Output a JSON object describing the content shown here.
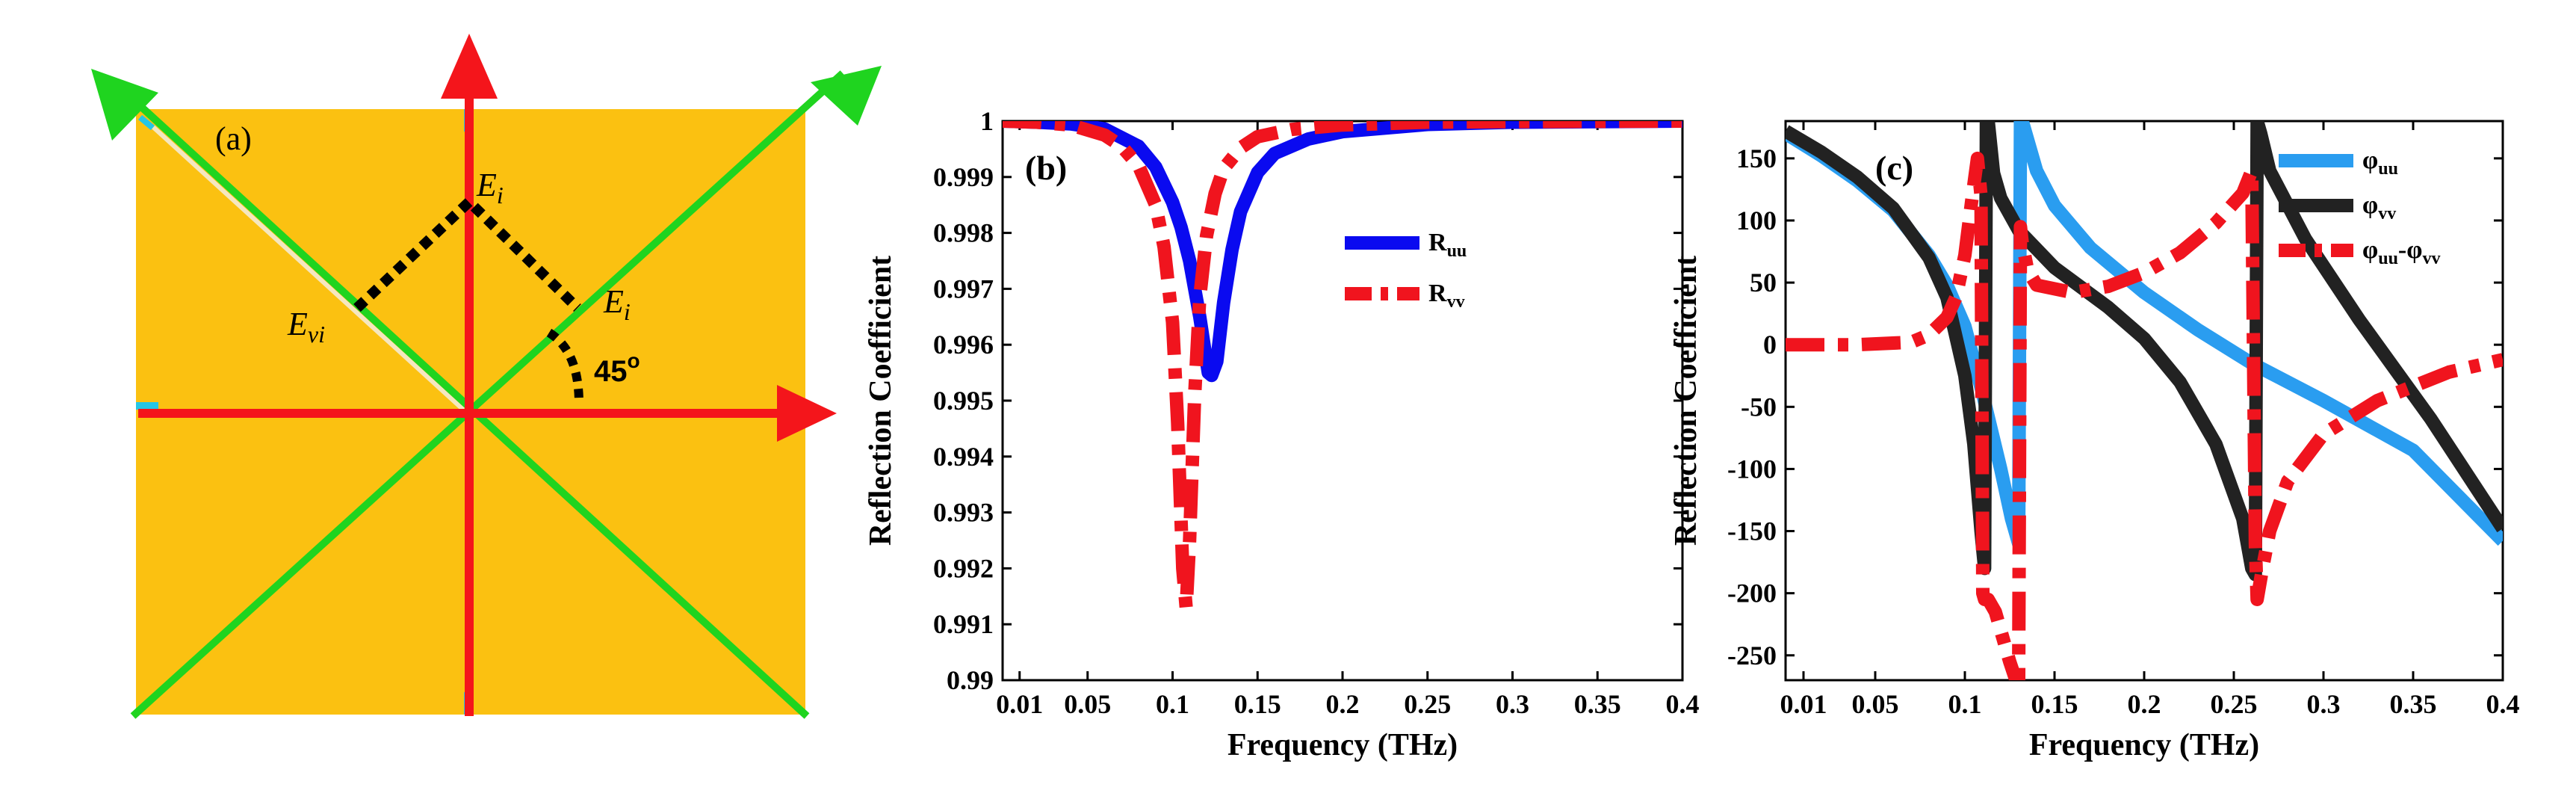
{
  "panel_a": {
    "label": "(a)",
    "label_ei_top": "E",
    "label_ei_top_sub": "i",
    "label_ei_right": "E",
    "label_ei_right_sub": "i",
    "label_evi": "E",
    "label_evi_sub": "vi",
    "angle_label": "45",
    "angle_sup": "o",
    "colors": {
      "plate": "#FBC111",
      "red_arrow": "#F4151B",
      "green_arrow": "#1FD41F",
      "cyan_edge": "#25C6E6",
      "dotted": "#000000"
    }
  },
  "chart_data": [
    {
      "type": "line",
      "panel_label": "(b)",
      "title": "",
      "xlabel": "Frequency (THz)",
      "ylabel": "Reflection Coefficient",
      "xlim": [
        0.0,
        0.4
      ],
      "ylim": [
        0.99,
        1.0
      ],
      "xticks": [
        0.01,
        0.05,
        0.1,
        0.15,
        0.2,
        0.25,
        0.3,
        0.35,
        0.4
      ],
      "xtick_labels": [
        "0.01",
        "0.05",
        "0.1",
        "0.15",
        "0.2",
        "0.25",
        "0.3",
        "0.35",
        "0.4"
      ],
      "yticks": [
        0.99,
        0.991,
        0.992,
        0.993,
        0.994,
        0.995,
        0.996,
        0.997,
        0.998,
        0.999,
        1.0
      ],
      "ytick_labels": [
        "0.99",
        "0.991",
        "0.992",
        "0.993",
        "0.994",
        "0.995",
        "0.996",
        "0.997",
        "0.998",
        "0.999",
        "1"
      ],
      "legend_position": "center-right",
      "series": [
        {
          "name": "R",
          "sub": "uu",
          "color": "#0A0AF0",
          "style": "solid",
          "x": [
            0.0,
            0.02,
            0.04,
            0.06,
            0.08,
            0.09,
            0.1,
            0.105,
            0.11,
            0.113,
            0.116,
            0.119,
            0.121,
            0.123,
            0.126,
            0.13,
            0.135,
            0.14,
            0.15,
            0.16,
            0.18,
            0.2,
            0.25,
            0.3,
            0.35,
            0.4
          ],
          "y": [
            1.0,
            0.99998,
            0.99995,
            0.99986,
            0.99955,
            0.99918,
            0.99855,
            0.9981,
            0.9975,
            0.997,
            0.9965,
            0.9959,
            0.9955,
            0.99545,
            0.9957,
            0.99675,
            0.9977,
            0.99838,
            0.99908,
            0.99942,
            0.99968,
            0.99981,
            0.99994,
            0.99998,
            0.99999,
            1.0
          ]
        },
        {
          "name": "R",
          "sub": "vv",
          "color": "#F0141E",
          "style": "dashdot",
          "x": [
            0.0,
            0.02,
            0.04,
            0.06,
            0.07,
            0.08,
            0.09,
            0.095,
            0.1,
            0.103,
            0.106,
            0.108,
            0.11,
            0.113,
            0.116,
            0.12,
            0.125,
            0.13,
            0.14,
            0.15,
            0.17,
            0.2,
            0.25,
            0.3,
            0.4
          ],
          "y": [
            1.0,
            0.99998,
            0.99993,
            0.99975,
            0.99955,
            0.9992,
            0.9985,
            0.99775,
            0.9964,
            0.9946,
            0.992,
            0.9913,
            0.9925,
            0.9951,
            0.99685,
            0.99795,
            0.9987,
            0.99915,
            0.99952,
            0.99972,
            0.99985,
            0.99993,
            0.99998,
            0.99999,
            1.0
          ]
        }
      ]
    },
    {
      "type": "line",
      "panel_label": "(c)",
      "title": "",
      "xlabel": "Frequency (THz)",
      "ylabel": "Reflection Coefficient",
      "xlim": [
        0.0,
        0.4
      ],
      "ylim": [
        -270,
        180
      ],
      "xticks": [
        0.01,
        0.05,
        0.1,
        0.15,
        0.2,
        0.25,
        0.3,
        0.35,
        0.4
      ],
      "xtick_labels": [
        "0.01",
        "0.05",
        "0.1",
        "0.15",
        "0.2",
        "0.25",
        "0.3",
        "0.35",
        "0.4"
      ],
      "yticks": [
        -250,
        -200,
        -150,
        -100,
        -50,
        0,
        50,
        100,
        150
      ],
      "ytick_labels": [
        "-250",
        "-200",
        "-150",
        "-100",
        "-50",
        "0",
        "50",
        "100",
        "150"
      ],
      "legend_position": "top-right",
      "series": [
        {
          "name": "φ",
          "sub": "uu",
          "color": "#2A9DF0",
          "style": "solid",
          "x": [
            0.0,
            0.02,
            0.04,
            0.06,
            0.08,
            0.09,
            0.1,
            0.11,
            0.12,
            0.126,
            0.13,
            0.131,
            0.132,
            0.136,
            0.14,
            0.15,
            0.17,
            0.2,
            0.23,
            0.26,
            0.3,
            0.35,
            0.4
          ],
          "y": [
            170,
            152,
            132,
            108,
            72,
            48,
            15,
            -40,
            -100,
            -140,
            -160,
            180,
            180,
            160,
            140,
            112,
            78,
            42,
            12,
            -15,
            -45,
            -85,
            -158
          ]
        },
        {
          "name": "φ",
          "sub": "vv",
          "color": "#222222",
          "style": "solid",
          "x": [
            0.0,
            0.02,
            0.04,
            0.06,
            0.08,
            0.09,
            0.1,
            0.105,
            0.109,
            0.111,
            0.112,
            0.113,
            0.116,
            0.12,
            0.13,
            0.15,
            0.18,
            0.2,
            0.22,
            0.24,
            0.255,
            0.26,
            0.262,
            0.263,
            0.265,
            0.27,
            0.29,
            0.32,
            0.36,
            0.4
          ],
          "y": [
            172,
            155,
            135,
            110,
            70,
            38,
            -25,
            -80,
            -150,
            -180,
            180,
            180,
            138,
            118,
            92,
            62,
            30,
            5,
            -30,
            -80,
            -140,
            -180,
            -185,
            180,
            170,
            140,
            85,
            20,
            -60,
            -148
          ]
        },
        {
          "name": "φ",
          "sub": "uu",
          "sep": "-",
          "name2": "φ",
          "sub2": "vv",
          "color": "#F0141E",
          "style": "dashdot",
          "x": [
            0.0,
            0.04,
            0.07,
            0.08,
            0.09,
            0.095,
            0.1,
            0.104,
            0.107,
            0.109,
            0.11,
            0.111,
            0.113,
            0.117,
            0.121,
            0.125,
            0.128,
            0.13,
            0.131,
            0.132,
            0.135,
            0.14,
            0.16,
            0.18,
            0.2,
            0.22,
            0.24,
            0.255,
            0.26,
            0.262,
            0.263,
            0.266,
            0.27,
            0.28,
            0.3,
            0.33,
            0.37,
            0.4
          ],
          "y": [
            0,
            0,
            2,
            8,
            22,
            38,
            72,
            118,
            150,
            120,
            -200,
            -205,
            -205,
            -215,
            -235,
            -255,
            -268,
            -270,
            95,
            82,
            60,
            48,
            42,
            47,
            58,
            74,
            98,
            122,
            140,
            -160,
            -205,
            -180,
            -150,
            -110,
            -72,
            -45,
            -22,
            -12
          ]
        }
      ]
    }
  ]
}
